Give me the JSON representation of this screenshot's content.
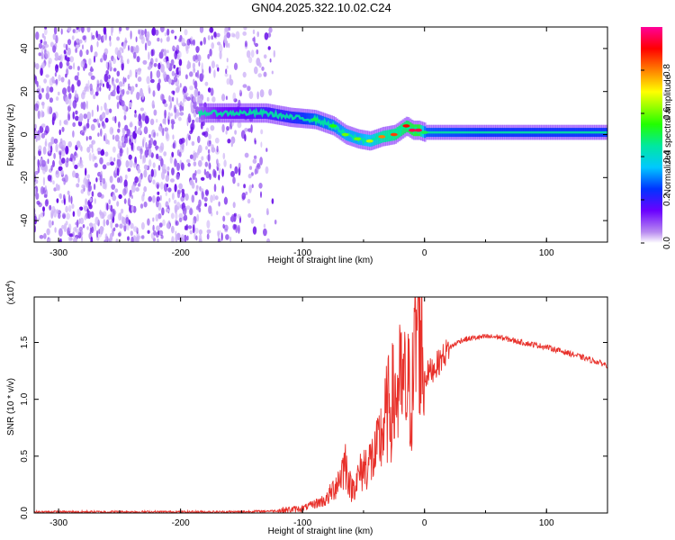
{
  "title": "GN04.2025.322.10.02.C24",
  "colors": {
    "snr_line": "#e8302a",
    "noise_scatter": "#7b2fe0",
    "axis": "#000000"
  },
  "chart_data": [
    {
      "type": "heatmap",
      "title": "GN04.2025.322.10.02.C24",
      "xlabel": "Height of straight line (km)",
      "ylabel": "Frequency (Hz)",
      "xlim": [
        -320,
        150
      ],
      "ylim": [
        -50,
        50
      ],
      "x_ticks": [
        -300,
        -200,
        -100,
        0,
        100
      ],
      "x_tick_labels": [
        "-300",
        "-200",
        "-100",
        "0",
        "100"
      ],
      "y_ticks": [
        -40,
        -20,
        0,
        20,
        40
      ],
      "y_tick_labels": [
        "-40",
        "-20",
        "0",
        "20",
        "40"
      ],
      "colorbar": {
        "label": "Normalized spectral amplitude",
        "range": [
          0,
          1
        ],
        "ticks": [
          0.0,
          0.2,
          0.4,
          0.6,
          0.8
        ],
        "tick_labels": [
          "0.0",
          "0.2",
          "0.4",
          "0.6",
          "0.8"
        ],
        "colormap": "rainbow (white-purple-blue-cyan-green-yellow-red-magenta)"
      },
      "ridge": {
        "description": "dominant frequency track",
        "x": [
          -185,
          -170,
          -150,
          -130,
          -110,
          -90,
          -75,
          -65,
          -55,
          -45,
          -35,
          -25,
          -15,
          -10,
          -5,
          0,
          50,
          100,
          150
        ],
        "frequency": [
          10,
          10,
          10,
          10,
          8,
          7,
          4,
          0,
          -2,
          -3,
          -1,
          0,
          4,
          2,
          2,
          1,
          1,
          1,
          1
        ],
        "amplitude": [
          0.15,
          0.25,
          0.3,
          0.35,
          0.4,
          0.5,
          0.55,
          0.6,
          0.6,
          0.65,
          0.8,
          0.85,
          0.9,
          0.95,
          0.95,
          0.5,
          0.45,
          0.45,
          0.45
        ]
      },
      "noise_region": {
        "x_range": [
          -320,
          -120
        ],
        "frequency_range": [
          -50,
          50
        ],
        "amplitude": 0.1
      },
      "grid": false
    },
    {
      "type": "line",
      "xlabel": "Height of straight line (km)",
      "ylabel": "SNR (10 * v/v)",
      "y_multiplier": "(x10",
      "y_multiplier_exp": "4",
      "y_multiplier_close": ")",
      "xlim": [
        -320,
        150
      ],
      "ylim": [
        0,
        1.9
      ],
      "x_ticks": [
        -300,
        -200,
        -100,
        0,
        100
      ],
      "x_tick_labels": [
        "-300",
        "-200",
        "-100",
        "0",
        "100"
      ],
      "y_ticks": [
        0.0,
        0.5,
        1.0,
        1.5
      ],
      "y_tick_labels": [
        "0.0",
        "0.5",
        "1.0",
        "1.5"
      ],
      "series": [
        {
          "x": [
            -320,
            -250,
            -200,
            -150,
            -120,
            -100,
            -90,
            -80,
            -70,
            -65,
            -60,
            -50,
            -40,
            -30,
            -20,
            -10,
            -5,
            0,
            10,
            20,
            30,
            40,
            50,
            60,
            80,
            100,
            120,
            150
          ],
          "y": [
            0.01,
            0.01,
            0.01,
            0.01,
            0.02,
            0.04,
            0.08,
            0.12,
            0.3,
            0.45,
            0.2,
            0.4,
            0.5,
            0.9,
            1.1,
            1.05,
            1.85,
            1.2,
            1.3,
            1.45,
            1.52,
            1.54,
            1.55,
            1.55,
            1.5,
            1.46,
            1.4,
            1.3
          ]
        }
      ],
      "grid": false
    }
  ]
}
